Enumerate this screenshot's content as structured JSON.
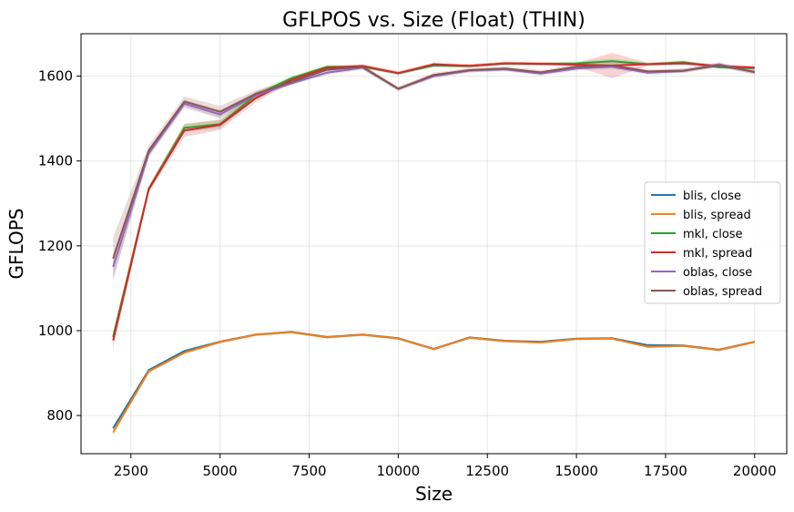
{
  "chart_data": {
    "type": "line",
    "title": "GFLPOS vs. Size (Float) (THIN)",
    "xlabel": "Size",
    "ylabel": "GFLOPS",
    "xlim": [
      1100,
      20900
    ],
    "ylim": [
      710,
      1700
    ],
    "x_ticks": [
      2500,
      5000,
      7500,
      10000,
      12500,
      15000,
      17500,
      20000
    ],
    "y_ticks": [
      800,
      1000,
      1200,
      1400,
      1600
    ],
    "grid": true,
    "legend_position": "center-right",
    "x": [
      2000,
      3000,
      4000,
      5000,
      6000,
      7000,
      8000,
      9000,
      10000,
      11000,
      12000,
      13000,
      14000,
      15000,
      16000,
      17000,
      18000,
      19000,
      20000
    ],
    "series": [
      {
        "name": "blis, close",
        "color": "#1f77b4",
        "values": [
          770,
          907,
          952,
          974,
          991,
          997,
          985,
          991,
          982,
          957,
          984,
          976,
          974,
          981,
          982,
          966,
          965,
          955,
          974
        ],
        "band": [
          5,
          3,
          3,
          3,
          2,
          2,
          2,
          2,
          2,
          2,
          2,
          2,
          2,
          2,
          2,
          2,
          2,
          2,
          2
        ]
      },
      {
        "name": "blis, spread",
        "color": "#ff7f0e",
        "values": [
          760,
          904,
          948,
          973,
          990,
          996,
          984,
          990,
          981,
          956,
          983,
          975,
          972,
          980,
          981,
          962,
          964,
          954,
          973
        ],
        "band": [
          5,
          3,
          3,
          3,
          2,
          2,
          2,
          2,
          2,
          2,
          2,
          2,
          2,
          2,
          2,
          2,
          2,
          2,
          2
        ]
      },
      {
        "name": "mkl, close",
        "color": "#2ca02c",
        "values": [
          985,
          1335,
          1478,
          1487,
          1555,
          1595,
          1622,
          1622,
          1607,
          1625,
          1624,
          1630,
          1629,
          1630,
          1635,
          1628,
          1633,
          1621,
          1619
        ],
        "band": [
          10,
          6,
          10,
          10,
          8,
          5,
          4,
          4,
          4,
          4,
          4,
          4,
          4,
          4,
          6,
          4,
          4,
          4,
          4
        ]
      },
      {
        "name": "mkl, spread",
        "color": "#d62728",
        "values": [
          977,
          1333,
          1472,
          1485,
          1548,
          1591,
          1619,
          1624,
          1607,
          1628,
          1624,
          1630,
          1629,
          1627,
          1625,
          1628,
          1630,
          1624,
          1620
        ],
        "band": [
          20,
          8,
          15,
          12,
          10,
          5,
          4,
          4,
          4,
          4,
          4,
          4,
          4,
          4,
          30,
          4,
          4,
          4,
          4
        ]
      },
      {
        "name": "oblas, close",
        "color": "#9467bd",
        "values": [
          1150,
          1418,
          1535,
          1510,
          1555,
          1583,
          1608,
          1620,
          1570,
          1600,
          1613,
          1616,
          1606,
          1618,
          1622,
          1608,
          1612,
          1628,
          1609
        ],
        "band": [
          30,
          10,
          10,
          10,
          8,
          5,
          5,
          5,
          5,
          5,
          5,
          5,
          5,
          5,
          5,
          5,
          5,
          5,
          5
        ]
      },
      {
        "name": "oblas, spread",
        "color": "#8c564b",
        "values": [
          1170,
          1425,
          1540,
          1516,
          1558,
          1586,
          1615,
          1622,
          1570,
          1603,
          1614,
          1618,
          1609,
          1622,
          1625,
          1611,
          1613,
          1625,
          1610
        ],
        "band": [
          50,
          12,
          12,
          14,
          8,
          5,
          5,
          5,
          5,
          5,
          5,
          5,
          5,
          5,
          5,
          5,
          5,
          5,
          5
        ]
      }
    ]
  }
}
